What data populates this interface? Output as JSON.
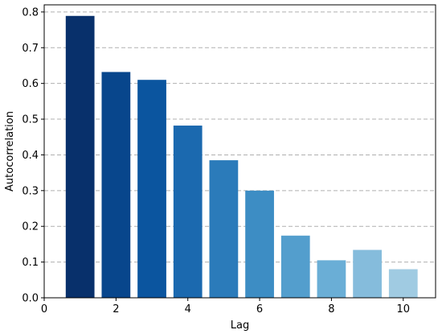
{
  "chart_data": {
    "type": "bar",
    "xlabel": "Lag",
    "ylabel": "Autocorrelation",
    "x": [
      1,
      2,
      3,
      4,
      5,
      6,
      7,
      8,
      9,
      10
    ],
    "values": [
      0.789,
      0.632,
      0.61,
      0.482,
      0.385,
      0.3,
      0.174,
      0.105,
      0.134,
      0.08
    ],
    "bar_colors": [
      "#08306b",
      "#08468c",
      "#0b559f",
      "#1b69af",
      "#2b7bba",
      "#3d8dc4",
      "#539ecd",
      "#6aaed6",
      "#85bcdc",
      "#a0cbe2"
    ],
    "xlim": [
      0,
      10.9
    ],
    "ylim": [
      0,
      0.82
    ],
    "xticks": [
      "0",
      "2",
      "4",
      "6",
      "8",
      "10"
    ],
    "yticks": [
      "0.0",
      "0.1",
      "0.2",
      "0.3",
      "0.4",
      "0.5",
      "0.6",
      "0.7",
      "0.8"
    ],
    "grid": "horizontal-dashed"
  }
}
